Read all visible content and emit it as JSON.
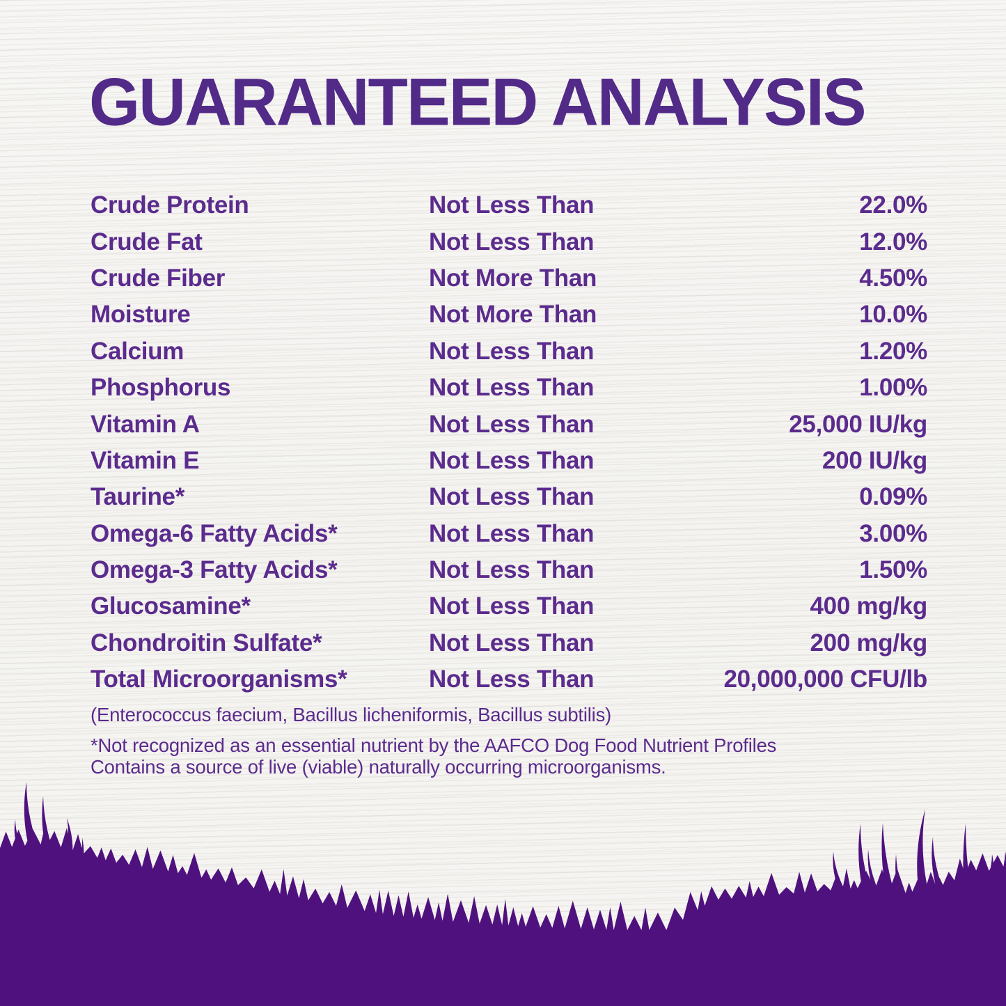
{
  "title": "GUARANTEED ANALYSIS",
  "colors": {
    "text_purple": "#5b2b8d",
    "title_purple": "#522a87",
    "grass_purple": "#4f117e",
    "background": "#f6f5f2"
  },
  "analysis_table": {
    "rows": [
      {
        "nutrient": "Crude Protein",
        "qualifier": "Not Less Than",
        "value": "22.0%"
      },
      {
        "nutrient": "Crude Fat",
        "qualifier": "Not Less Than",
        "value": "12.0%"
      },
      {
        "nutrient": "Crude Fiber",
        "qualifier": "Not More Than",
        "value": "4.50%"
      },
      {
        "nutrient": "Moisture",
        "qualifier": "Not More Than",
        "value": "10.0%"
      },
      {
        "nutrient": "Calcium",
        "qualifier": "Not Less Than",
        "value": "1.20%"
      },
      {
        "nutrient": "Phosphorus",
        "qualifier": "Not Less Than",
        "value": "1.00%"
      },
      {
        "nutrient": "Vitamin A",
        "qualifier": "Not Less Than",
        "value": "25,000 IU/kg"
      },
      {
        "nutrient": "Vitamin E",
        "qualifier": "Not Less Than",
        "value": "200 IU/kg"
      },
      {
        "nutrient": "Taurine*",
        "qualifier": "Not Less Than",
        "value": "0.09%"
      },
      {
        "nutrient": "Omega-6 Fatty Acids*",
        "qualifier": "Not Less Than",
        "value": "3.00%"
      },
      {
        "nutrient": "Omega-3 Fatty Acids*",
        "qualifier": "Not Less Than",
        "value": "1.50%"
      },
      {
        "nutrient": "Glucosamine*",
        "qualifier": "Not Less Than",
        "value": "400 mg/kg"
      },
      {
        "nutrient": "Chondroitin Sulfate*",
        "qualifier": "Not Less Than",
        "value": "200 mg/kg"
      },
      {
        "nutrient": "Total Microorganisms*",
        "qualifier": "Not Less Than",
        "value": "20,000,000 CFU/lb"
      }
    ],
    "microorganisms_note": "(Enterococcus faecium, Bacillus licheniformis, Bacillus subtilis)",
    "footnotes": [
      "*Not recognized as an essential nutrient by the AAFCO Dog Food Nutrient Profiles",
      "Contains a source of live (viable) naturally occurring microorganisms."
    ]
  }
}
